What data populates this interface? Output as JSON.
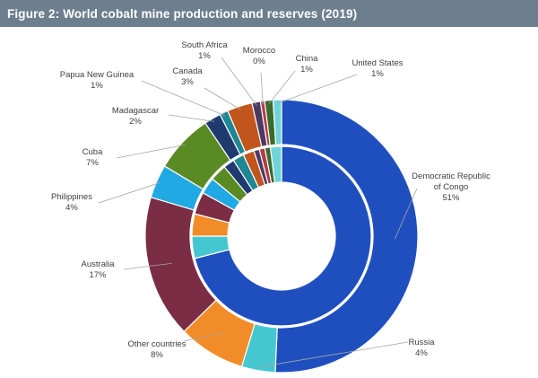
{
  "title": "Figure 2: World cobalt mine production and reserves (2019)",
  "chart_data": {
    "type": "donut",
    "categories": [
      "Democratic Republic of Congo",
      "Russia",
      "Other countries",
      "Australia",
      "Philippines",
      "Cuba",
      "Madagascar",
      "Papua New Guinea",
      "Canada",
      "South Africa",
      "Morocco",
      "China",
      "United States"
    ],
    "colors": [
      "#1f4fbf",
      "#44c7d0",
      "#f28c28",
      "#7b2d45",
      "#20a9e2",
      "#5a8a24",
      "#1f3a6e",
      "#1f8793",
      "#c1551d",
      "#4b3a63",
      "#b23b46",
      "#3a6a2d",
      "#6fd4d8"
    ],
    "series": [
      {
        "name": "Reserves",
        "ring": "outer",
        "values": [
          51,
          4,
          8,
          17,
          4,
          7,
          2,
          1,
          3,
          1,
          0,
          1,
          1
        ],
        "labels": [
          "51%",
          "4%",
          "8%",
          "17%",
          "4%",
          "7%",
          "2%",
          "1%",
          "3%",
          "1%",
          "0%",
          "1%",
          "1%"
        ]
      },
      {
        "ring": "inner",
        "values": [
          71,
          4,
          4,
          4,
          3,
          3,
          2,
          2,
          2,
          1,
          1,
          1,
          2
        ]
      }
    ]
  }
}
